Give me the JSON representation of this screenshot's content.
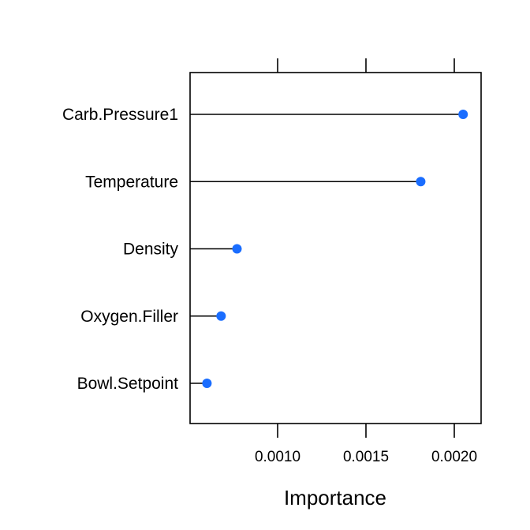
{
  "chart_data": {
    "type": "dotplot",
    "categories": [
      "Carb.Pressure1",
      "Temperature",
      "Density",
      "Oxygen.Filler",
      "Bowl.Setpoint"
    ],
    "values": [
      0.00205,
      0.00181,
      0.00077,
      0.00068,
      0.0006
    ],
    "xlabel": "Importance",
    "xlim": [
      0.0005,
      0.00215
    ],
    "x_ticks": [
      0.001,
      0.0015,
      0.002
    ],
    "x_tick_labels": [
      "0.0010",
      "0.0015",
      "0.0020"
    ],
    "point_color": "#1a6dff",
    "line_color": "#000000",
    "grid": false
  }
}
